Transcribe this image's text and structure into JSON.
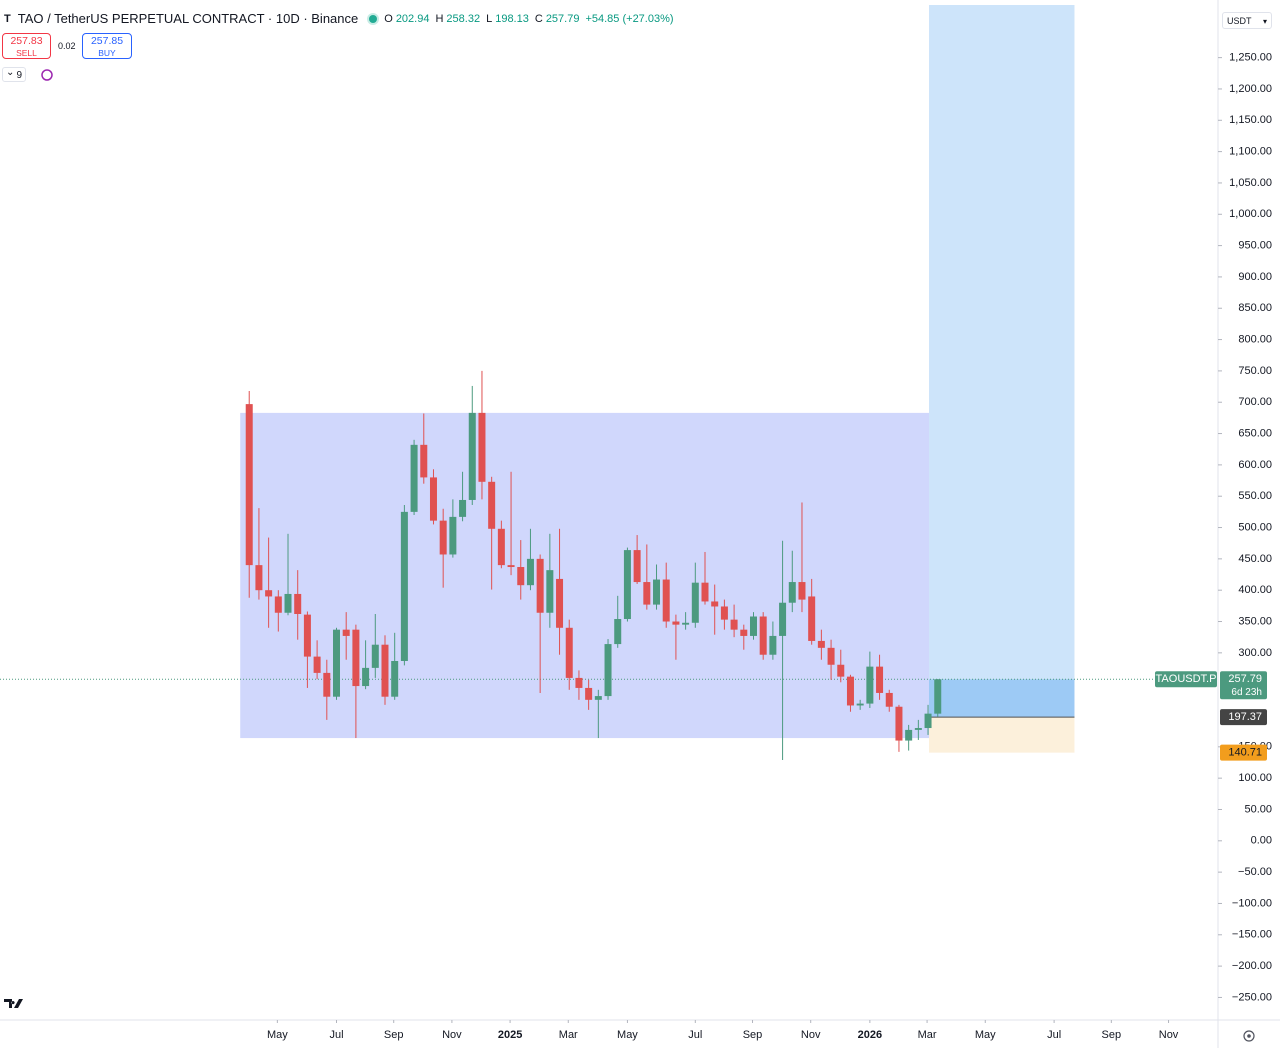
{
  "chart_data": {
    "type": "candlestick",
    "title": "TAO / TetherUS PERPETUAL CONTRACT · 10D · Binance",
    "header_keys": [
      "O",
      "H",
      "L",
      "C"
    ],
    "change_label": "+54.85 (+27.03%)",
    "toolbar": {
      "sell_price": 257.83,
      "sell": "SELL",
      "spread": 0.02,
      "buy_price": 257.85,
      "buy": "BUY",
      "indicators": 9
    },
    "currency": "USDT",
    "symbol_label": "TAOUSDT.P",
    "countdown": "6d 23h",
    "up_color": "#4c9a7f",
    "down_color": "#e05151",
    "open": [
      697,
      440,
      400,
      390,
      364,
      394,
      361,
      294,
      268,
      230,
      337,
      337,
      247,
      276,
      313,
      230,
      287,
      525,
      632,
      580,
      511,
      457,
      517,
      544,
      683,
      573,
      498,
      440,
      437,
      408,
      450,
      364,
      418,
      340,
      260,
      244,
      225,
      231,
      314,
      354,
      464,
      413,
      377,
      417,
      350,
      345,
      348,
      412,
      382,
      374,
      353,
      337,
      327,
      358,
      297,
      327,
      380,
      413,
      390,
      319,
      308,
      281,
      262,
      216,
      219,
      278,
      236,
      214,
      160,
      177,
      180,
      202.94
    ],
    "high": [
      718,
      531,
      484,
      400,
      490,
      432,
      366,
      320,
      289,
      340,
      365,
      345,
      320,
      362,
      328,
      332,
      536,
      640,
      682,
      593,
      530,
      545,
      589,
      726,
      750,
      581,
      511,
      589,
      480,
      498,
      457,
      490,
      498,
      353,
      272,
      257,
      241,
      322,
      391,
      468,
      488,
      473,
      441,
      444,
      361,
      365,
      444,
      461,
      409,
      385,
      377,
      345,
      365,
      365,
      350,
      479,
      463,
      540,
      418,
      337,
      321,
      305,
      265,
      225,
      302,
      297,
      241,
      217,
      185,
      193,
      217,
      258.32
    ],
    "low": [
      388,
      385,
      340,
      334,
      360,
      321,
      244,
      258,
      193,
      225,
      289,
      164,
      242,
      260,
      217,
      225,
      280,
      520,
      570,
      505,
      404,
      452,
      510,
      536,
      545,
      401,
      435,
      424,
      385,
      400,
      236,
      340,
      297,
      241,
      225,
      209,
      164,
      225,
      308,
      350,
      410,
      369,
      369,
      340,
      289,
      337,
      340,
      377,
      329,
      337,
      325,
      305,
      321,
      289,
      289,
      129,
      365,
      365,
      313,
      289,
      257,
      253,
      206,
      209,
      212,
      225,
      206,
      142,
      144,
      161,
      169,
      198.13
    ],
    "close": [
      440,
      400,
      390,
      364,
      394,
      362,
      294,
      268,
      230,
      337,
      327,
      247,
      276,
      313,
      230,
      287,
      525,
      632,
      580,
      511,
      457,
      517,
      544,
      683,
      573,
      498,
      440,
      437,
      408,
      450,
      364,
      432,
      340,
      260,
      244,
      225,
      231,
      314,
      354,
      464,
      413,
      377,
      417,
      350,
      345,
      348,
      412,
      382,
      374,
      353,
      337,
      327,
      358,
      297,
      327,
      380,
      413,
      385,
      319,
      308,
      281,
      262,
      216,
      219,
      278,
      236,
      214,
      160,
      177,
      180,
      202.94,
      257.79
    ],
    "ylim": [
      -286,
      1334
    ],
    "yticks": [
      {
        "value": -250,
        "label": "−250.00"
      },
      {
        "value": -200,
        "label": "−200.00"
      },
      {
        "value": -150,
        "label": "−150.00"
      },
      {
        "value": -100,
        "label": "−100.00"
      },
      {
        "value": -50,
        "label": "−50.00"
      },
      {
        "value": 0,
        "label": "0.00"
      },
      {
        "value": 50,
        "label": "50.00"
      },
      {
        "value": 100,
        "label": "100.00"
      },
      {
        "value": 150,
        "label": "150.00"
      },
      {
        "value": 300,
        "label": "300.00"
      },
      {
        "value": 350,
        "label": "350.00"
      },
      {
        "value": 400,
        "label": "400.00"
      },
      {
        "value": 450,
        "label": "450.00"
      },
      {
        "value": 500,
        "label": "500.00"
      },
      {
        "value": 550,
        "label": "550.00"
      },
      {
        "value": 600,
        "label": "600.00"
      },
      {
        "value": 650,
        "label": "650.00"
      },
      {
        "value": 700,
        "label": "700.00"
      },
      {
        "value": 750,
        "label": "750.00"
      },
      {
        "value": 800,
        "label": "800.00"
      },
      {
        "value": 850,
        "label": "850.00"
      },
      {
        "value": 900,
        "label": "900.00"
      },
      {
        "value": 950,
        "label": "950.00"
      },
      {
        "value": 1000,
        "label": "1,000.00"
      },
      {
        "value": 1050,
        "label": "1,050.00"
      },
      {
        "value": 1100,
        "label": "1,100.00"
      },
      {
        "value": 1150,
        "label": "1,150.00"
      },
      {
        "value": 1200,
        "label": "1,200.00"
      },
      {
        "value": 1250,
        "label": "1,250.00"
      }
    ],
    "xlim": [
      -25.7,
      99.9
    ],
    "xticks": [
      {
        "value": 2.9,
        "label": "May"
      },
      {
        "value": 9.0,
        "label": "Jul"
      },
      {
        "value": 14.9,
        "label": "Sep"
      },
      {
        "value": 20.9,
        "label": "Nov"
      },
      {
        "value": 26.9,
        "label": "2025"
      },
      {
        "value": 32.9,
        "label": "Mar"
      },
      {
        "value": 39.0,
        "label": "May"
      },
      {
        "value": 46.0,
        "label": "Jul"
      },
      {
        "value": 51.9,
        "label": "Sep"
      },
      {
        "value": 57.9,
        "label": "Nov"
      },
      {
        "value": 64.0,
        "label": "2026"
      },
      {
        "value": 69.9,
        "label": "Mar"
      },
      {
        "value": 75.9,
        "label": "May"
      },
      {
        "value": 83.0,
        "label": "Jul"
      },
      {
        "value": 88.9,
        "label": "Sep"
      },
      {
        "value": 94.8,
        "label": "Nov"
      }
    ],
    "range_box": {
      "high": 683,
      "low": 164
    },
    "position": {
      "entry": 197.37,
      "stop": 140.71
    }
  }
}
